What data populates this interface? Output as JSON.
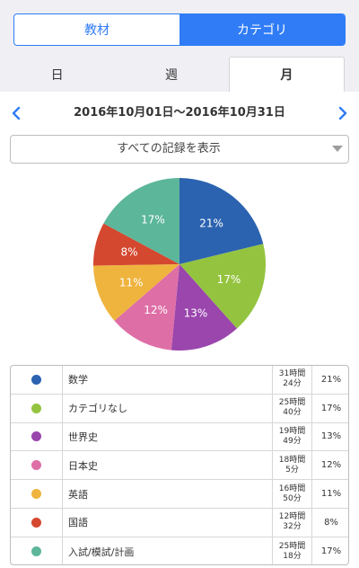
{
  "header": {
    "segments": [
      {
        "label": "教材",
        "active": false
      },
      {
        "label": "カテゴリ",
        "active": true
      }
    ],
    "period_tabs": [
      {
        "label": "日",
        "active": false
      },
      {
        "label": "週",
        "active": false
      },
      {
        "label": "月",
        "active": true
      }
    ]
  },
  "date_range": "2016年10月01日〜2016年10月31日",
  "filter": {
    "label": "すべての記録を表示"
  },
  "colors": {
    "accent": "#2f7cf6"
  },
  "chart_data": {
    "type": "pie",
    "categories": [
      "数学",
      "カテゴリなし",
      "世界史",
      "日本史",
      "英語",
      "国語",
      "入試/模試/計画"
    ],
    "values": [
      21,
      17,
      13,
      12,
      11,
      8,
      17
    ],
    "labels": [
      "21%",
      "17%",
      "13%",
      "12%",
      "11%",
      "8%",
      "17%"
    ],
    "colors": [
      "#2b63b0",
      "#94c43f",
      "#9a46ad",
      "#de6fa6",
      "#efb43e",
      "#d4482f",
      "#5cb69a"
    ]
  },
  "legend": [
    {
      "name": "数学",
      "time": "31時間\n24分",
      "percent": "21%",
      "color": "#2b63b0"
    },
    {
      "name": "カテゴリなし",
      "time": "25時間\n40分",
      "percent": "17%",
      "color": "#94c43f"
    },
    {
      "name": "世界史",
      "time": "19時間\n49分",
      "percent": "13%",
      "color": "#9a46ad"
    },
    {
      "name": "日本史",
      "time": "18時間\n5分",
      "percent": "12%",
      "color": "#de6fa6"
    },
    {
      "name": "英語",
      "time": "16時間\n50分",
      "percent": "11%",
      "color": "#efb43e"
    },
    {
      "name": "国語",
      "time": "12時間\n32分",
      "percent": "8%",
      "color": "#d4482f"
    },
    {
      "name": "入試/模試/計画",
      "time": "25時間\n18分",
      "percent": "17%",
      "color": "#5cb69a"
    }
  ]
}
